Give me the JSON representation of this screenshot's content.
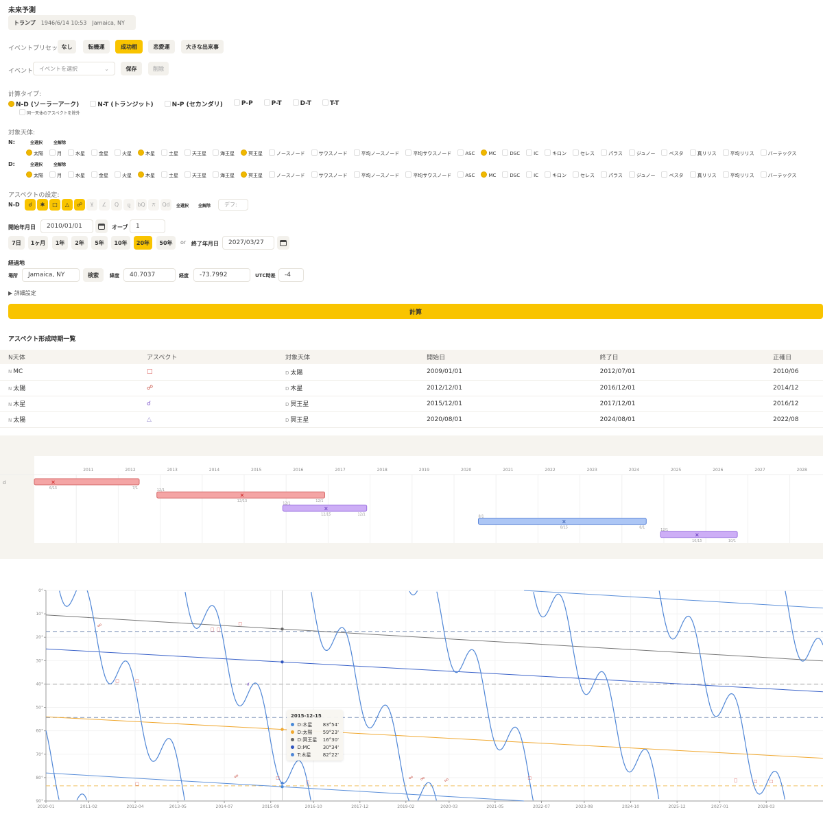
{
  "title": "未来予測",
  "profile": {
    "name": "トランプ",
    "datetime": "1946/6/14 10:53",
    "place": "Jamaica, NY"
  },
  "presets": {
    "label": "イベントプリセット:",
    "items": [
      {
        "label": "なし",
        "active": false
      },
      {
        "label": "転機運",
        "active": false
      },
      {
        "label": "成功相",
        "active": true
      },
      {
        "label": "恋愛運",
        "active": false
      },
      {
        "label": "大きな出来事",
        "active": false
      }
    ]
  },
  "event": {
    "label": "イベント:",
    "placeholder": "イベントを選択",
    "save": "保存",
    "delete": "削除"
  },
  "calc_type": {
    "label": "計算タイプ:",
    "items": [
      {
        "label": "N-D (ソーラーアーク)",
        "checked": true
      },
      {
        "label": "N-T (トランジット)",
        "checked": false
      },
      {
        "label": "N-P (セカンダリ)",
        "checked": false
      },
      {
        "label": "P-P",
        "checked": false
      },
      {
        "label": "P-T",
        "checked": false
      },
      {
        "label": "D-T",
        "checked": false
      },
      {
        "label": "T-T",
        "checked": false
      }
    ],
    "exclude_same": "同一天体のアスペクトを除外"
  },
  "bodies": {
    "label": "対象天体:",
    "select_all": "全選択",
    "clear_all": "全解除",
    "rows": [
      {
        "prefix": "N:",
        "checked": [
          "太陽",
          "木星",
          "冥王星",
          "MC"
        ]
      },
      {
        "prefix": "D:",
        "checked": [
          "太陽",
          "木星",
          "冥王星",
          "MC"
        ]
      }
    ],
    "items": [
      "太陽",
      "月",
      "水星",
      "金星",
      "火星",
      "木星",
      "土星",
      "天王星",
      "海王星",
      "冥王星",
      "ノースノード",
      "サウスノード",
      "平均ノースノード",
      "平均サウスノード",
      "ASC",
      "MC",
      "DSC",
      "IC",
      "キロン",
      "セレス",
      "パラス",
      "ジュノー",
      "ベスタ",
      "真リリス",
      "平均リリス",
      "バーテックス"
    ]
  },
  "aspects": {
    "label": "アスペクトの設定:",
    "row": "N-D",
    "items": [
      {
        "g": "☌",
        "on": true
      },
      {
        "g": "✱",
        "on": true
      },
      {
        "g": "□",
        "on": true
      },
      {
        "g": "△",
        "on": true
      },
      {
        "g": "☍",
        "on": true
      },
      {
        "g": "⊻",
        "on": false
      },
      {
        "g": "∠",
        "on": false
      },
      {
        "g": "Q",
        "on": false
      },
      {
        "g": "⚼",
        "on": false
      },
      {
        "g": "bQ",
        "on": false
      },
      {
        "g": "⚻",
        "on": false
      },
      {
        "g": "Qd",
        "on": false
      }
    ],
    "select_all": "全選択",
    "clear_all": "全解除",
    "default_placeholder": "デフ:"
  },
  "dates": {
    "start_label": "開始年月日",
    "start": "2010/01/01",
    "orb_label": "オーブ",
    "orb": "1",
    "periods": [
      {
        "label": "7日",
        "active": false
      },
      {
        "label": "1ヶ月",
        "active": false
      },
      {
        "label": "1年",
        "active": false
      },
      {
        "label": "2年",
        "active": false
      },
      {
        "label": "5年",
        "active": false
      },
      {
        "label": "10年",
        "active": false
      },
      {
        "label": "20年",
        "active": true
      },
      {
        "label": "50年",
        "active": false
      }
    ],
    "or": "or",
    "end_label": "終了年月日",
    "end": "2027/03/27"
  },
  "location": {
    "label": "経過地",
    "place_label": "場所",
    "place": "Jamaica, NY",
    "search": "検索",
    "lat_label": "緯度",
    "lat": "40.7037",
    "lon_label": "経度",
    "lon": "-73.7992",
    "utc_label": "UTC時差",
    "utc": "-4"
  },
  "details": "▶ 詳細設定",
  "calculate": "計算",
  "accent": "#f9c400",
  "aspect_table": {
    "title": "アスペクト形成時期一覧",
    "headers": [
      "N天体",
      "アスペクト",
      "対象天体",
      "開始日",
      "終了日",
      "正確日"
    ],
    "rows": [
      {
        "n": "MC",
        "aspect": "□",
        "aspect_color": "#d9534f",
        "target": "太陽",
        "start": "2009/01/01",
        "end": "2012/07/01",
        "exact": "2010/06"
      },
      {
        "n": "太陽",
        "aspect": "☍",
        "aspect_color": "#c0392b",
        "target": "木星",
        "start": "2012/12/01",
        "end": "2016/12/01",
        "exact": "2014/12"
      },
      {
        "n": "木星",
        "aspect": "☌",
        "aspect_color": "#7a4fc9",
        "target": "冥王星",
        "start": "2015/12/01",
        "end": "2017/12/01",
        "exact": "2016/12"
      },
      {
        "n": "太陽",
        "aspect": "△",
        "aspect_color": "#9b8fd0",
        "target": "冥王星",
        "start": "2020/08/01",
        "end": "2024/08/01",
        "exact": "2022/08"
      }
    ],
    "n_prefix": "N",
    "d_prefix": "D"
  },
  "timeline": {
    "years": [
      2011,
      2012,
      2013,
      2014,
      2015,
      2016,
      2017,
      2018,
      2019,
      2020,
      2021,
      2022,
      2023,
      2024,
      2025,
      2026,
      2027,
      2028
    ],
    "row_label": "d",
    "bars": [
      {
        "start": 2010.0,
        "exact": 2010.45,
        "end": 2012.5,
        "color": "#f4a5a5",
        "border": "#d46a6a",
        "mark": "#d03030",
        "start_label": "",
        "exact_label": "6/15",
        "end_label": "7/1"
      },
      {
        "start": 2012.92,
        "exact": 2014.95,
        "end": 2016.92,
        "color": "#f4a5a5",
        "border": "#d46a6a",
        "mark": "#d03030",
        "start_label": "12/1",
        "exact_label": "12/13",
        "end_label": "12/1"
      },
      {
        "start": 2015.92,
        "exact": 2016.95,
        "end": 2017.92,
        "color": "#cdaef6",
        "border": "#9a70e0",
        "mark": "#6a3fc0",
        "start_label": "12/1",
        "exact_label": "12/15",
        "end_label": "12/1"
      },
      {
        "start": 2020.58,
        "exact": 2022.62,
        "end": 2024.58,
        "color": "#acc6f5",
        "border": "#5b84d8",
        "mark": "#3a5fb0",
        "start_label": "8/1",
        "exact_label": "8/15",
        "end_label": "8/1"
      },
      {
        "start": 2024.92,
        "exact": 2025.79,
        "end": 2026.75,
        "color": "#cdaef6",
        "border": "#9a70e0",
        "mark": "#6a3fc0",
        "start_label": "12/1",
        "exact_label": "10/15",
        "end_label": "10/1"
      }
    ]
  },
  "chart_data": {
    "type": "line",
    "xlabel": "",
    "ylabel": "",
    "ylim": [
      0,
      90
    ],
    "y_inverted": true,
    "grid": true,
    "yticks": [
      "0°",
      "10°",
      "20°",
      "30°",
      "40°",
      "50°",
      "60°",
      "70°",
      "80°",
      "90°"
    ],
    "xticks": [
      {
        "t": 2010.0,
        "label": "2010-01"
      },
      {
        "t": 2011.08,
        "label": "2011-02"
      },
      {
        "t": 2012.25,
        "label": "2012-04"
      },
      {
        "t": 2013.33,
        "label": "2013-05"
      },
      {
        "t": 2014.5,
        "label": "2014-07"
      },
      {
        "t": 2015.67,
        "label": "2015-09"
      },
      {
        "t": 2016.75,
        "label": "2016-10"
      },
      {
        "t": 2017.92,
        "label": "2017-12"
      },
      {
        "t": 2019.08,
        "label": "2019-02"
      },
      {
        "t": 2020.17,
        "label": "2020-03"
      },
      {
        "t": 2021.33,
        "label": "2021-05"
      },
      {
        "t": 2022.5,
        "label": "2022-07"
      },
      {
        "t": 2023.58,
        "label": "2023-08"
      },
      {
        "t": 2024.75,
        "label": "2024-10"
      },
      {
        "t": 2025.92,
        "label": "2025-12"
      },
      {
        "t": 2027.0,
        "label": "2027-01"
      },
      {
        "t": 2028.17,
        "label": "2028-03"
      }
    ],
    "xrange": [
      2010.0,
      2029.6
    ],
    "series": [
      {
        "name": "D:木星",
        "color": "#5b8fd9",
        "points": [
          [
            2010.0,
            78.0
          ],
          [
            2015.96,
            83.9
          ],
          [
            2022.06,
            90.0
          ],
          [
            2022.06,
            0.0
          ],
          [
            2029.6,
            7.5
          ]
        ]
      },
      {
        "name": "D:太陽",
        "color": "#f0a830",
        "points": [
          [
            2010.0,
            54.0
          ],
          [
            2015.96,
            59.4
          ],
          [
            2029.6,
            71.7
          ]
        ]
      },
      {
        "name": "D:冥王星",
        "color": "#777777",
        "points": [
          [
            2010.0,
            10.5
          ],
          [
            2015.96,
            16.5
          ],
          [
            2029.6,
            30.1
          ]
        ]
      },
      {
        "name": "D:MC",
        "color": "#3a62c9",
        "points": [
          [
            2010.0,
            25.0
          ],
          [
            2015.96,
            30.57
          ],
          [
            2029.6,
            43.3
          ]
        ]
      },
      {
        "name": "T:木星",
        "color": "#4f86d6",
        "anchor": [
          2015.96,
          82.37
        ]
      }
    ],
    "reference_lines": [
      {
        "value": 17.5,
        "color": "#7f93b8"
      },
      {
        "value": 40,
        "color": "#999999"
      },
      {
        "value": 54.3,
        "color": "#7f93b8"
      },
      {
        "value": 83.5,
        "color": "#f0c060"
      }
    ],
    "markers": [
      [
        2011.35,
        15,
        "☍",
        "#c0392b"
      ],
      [
        2011.8,
        38.5,
        "□",
        "#d9534f"
      ],
      [
        2012.3,
        38.5,
        "□",
        "#d9534f"
      ],
      [
        2014.2,
        16.5,
        "□",
        "#d9534f"
      ],
      [
        2014.35,
        16.5,
        "□",
        "#d9534f"
      ],
      [
        2014.9,
        14,
        "□",
        "#d9534f"
      ],
      [
        2015.1,
        40,
        "☌",
        "#7a4fc9"
      ],
      [
        2015.85,
        80,
        "□",
        "#d9534f"
      ],
      [
        2016.6,
        82,
        "□",
        "#d9534f"
      ],
      [
        2012.3,
        82.5,
        "□",
        "#d9534f"
      ],
      [
        2014.8,
        79.5,
        "☍",
        "#c0392b"
      ],
      [
        2019.2,
        80,
        "☍",
        "#c0392b"
      ],
      [
        2019.5,
        80.5,
        "☍",
        "#c0392b"
      ],
      [
        2020.1,
        81,
        "☍",
        "#c0392b"
      ],
      [
        2022.2,
        80,
        "□",
        "#d9534f"
      ],
      [
        2027.4,
        81,
        "□",
        "#d9534f"
      ],
      [
        2027.9,
        81.5,
        "□",
        "#d9534f"
      ],
      [
        2028.3,
        81.5,
        "□",
        "#d9534f"
      ]
    ],
    "tooltip": {
      "date": "2015-12-15",
      "t": 2015.96,
      "rows": [
        {
          "name": "D:木星",
          "value": "83°54'",
          "deg": 83.9,
          "color": "#4a8ad8"
        },
        {
          "name": "D:太陽",
          "value": "59°23'",
          "deg": 59.38,
          "color": "#f0a830"
        },
        {
          "name": "D:冥王星",
          "value": "16°30'",
          "deg": 16.5,
          "color": "#666666"
        },
        {
          "name": "D:MC",
          "value": "30°34'",
          "deg": 30.57,
          "color": "#2f55c0"
        },
        {
          "name": "T:木星",
          "value": "82°22'",
          "deg": 82.37,
          "color": "#4f86d6"
        }
      ]
    }
  }
}
